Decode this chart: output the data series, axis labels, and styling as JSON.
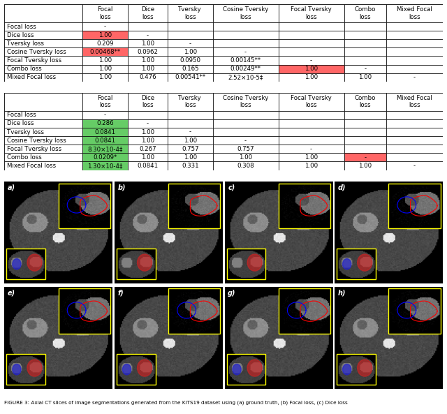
{
  "col_headers": [
    "Focal\nloss",
    "Dice\nloss",
    "Tversky\nloss",
    "Cosine Tversky\nloss",
    "Focal Tversky\nloss",
    "Combo\nloss",
    "Mixed Focal\nloss"
  ],
  "row_headers": [
    "Focal loss",
    "Dice loss",
    "Tversky loss",
    "Cosine Tversky loss",
    "Focal Tversky loss",
    "Combo loss",
    "Mixed Focal loss"
  ],
  "table1_data": [
    [
      "-",
      "",
      "",
      "",
      "",
      "",
      ""
    ],
    [
      "1.00",
      "-",
      "",
      "",
      "",
      "",
      ""
    ],
    [
      "0.209",
      "1.00",
      "-",
      "",
      "",
      "",
      ""
    ],
    [
      "0.00468**",
      "0.0962",
      "1.00",
      "-",
      "",
      "",
      ""
    ],
    [
      "1.00",
      "1.00",
      "0.0950",
      "0.00145**",
      "-",
      "",
      ""
    ],
    [
      "1.00",
      "1.00",
      "0.165",
      "0.00249**",
      "1.00",
      "-",
      ""
    ],
    [
      "1.00",
      "0.476",
      "0.00541**",
      "2.52×10-5‡",
      "1.00",
      "1.00",
      "-"
    ]
  ],
  "table1_colors": [
    [
      "white",
      "white",
      "white",
      "white",
      "white",
      "white",
      "white"
    ],
    [
      "#ff6666",
      "white",
      "white",
      "white",
      "white",
      "white",
      "white"
    ],
    [
      "white",
      "white",
      "white",
      "white",
      "white",
      "white",
      "white"
    ],
    [
      "#ff6666",
      "white",
      "white",
      "white",
      "white",
      "white",
      "white"
    ],
    [
      "white",
      "white",
      "white",
      "white",
      "white",
      "white",
      "white"
    ],
    [
      "white",
      "white",
      "white",
      "white",
      "#ff6666",
      "white",
      "white"
    ],
    [
      "white",
      "white",
      "white",
      "white",
      "white",
      "white",
      "white"
    ]
  ],
  "table2_data": [
    [
      "-",
      "",
      "",
      "",
      "",
      "",
      ""
    ],
    [
      "0.286",
      "-",
      "",
      "",
      "",
      "",
      ""
    ],
    [
      "0.0841",
      "1.00",
      "-",
      "",
      "",
      "",
      ""
    ],
    [
      "0.0841",
      "1.00",
      "1.00",
      "-",
      "",
      "",
      ""
    ],
    [
      "8.30×10-4‡",
      "0.267",
      "0.757",
      "0.757",
      "-",
      "",
      ""
    ],
    [
      "0.0209*",
      "1.00",
      "1.00",
      "1.00",
      "1.00",
      "-",
      ""
    ],
    [
      "1.30×10-4‡",
      "0.0841",
      "0.331",
      "0.308",
      "1.00",
      "1.00",
      "-"
    ]
  ],
  "table2_colors": [
    [
      "white",
      "white",
      "white",
      "white",
      "white",
      "white",
      "white"
    ],
    [
      "#66cc66",
      "white",
      "white",
      "white",
      "white",
      "white",
      "white"
    ],
    [
      "#66cc66",
      "white",
      "white",
      "white",
      "white",
      "white",
      "white"
    ],
    [
      "#66cc66",
      "white",
      "white",
      "white",
      "white",
      "white",
      "white"
    ],
    [
      "#66cc66",
      "white",
      "white",
      "white",
      "white",
      "white",
      "white"
    ],
    [
      "#66cc66",
      "white",
      "white",
      "white",
      "white",
      "#ff6666",
      "white"
    ],
    [
      "#66cc66",
      "white",
      "white",
      "white",
      "white",
      "white",
      "white"
    ]
  ],
  "caption": "FIGURE 3: Axial CT slices of image segmentations generated from the KiTS19 dataset using (a) ground truth, (b) Focal loss, (c) Dice loss",
  "fig_labels": [
    "a)",
    "b)",
    "c)",
    "d)",
    "e)",
    "f)",
    "g)",
    "h)"
  ]
}
